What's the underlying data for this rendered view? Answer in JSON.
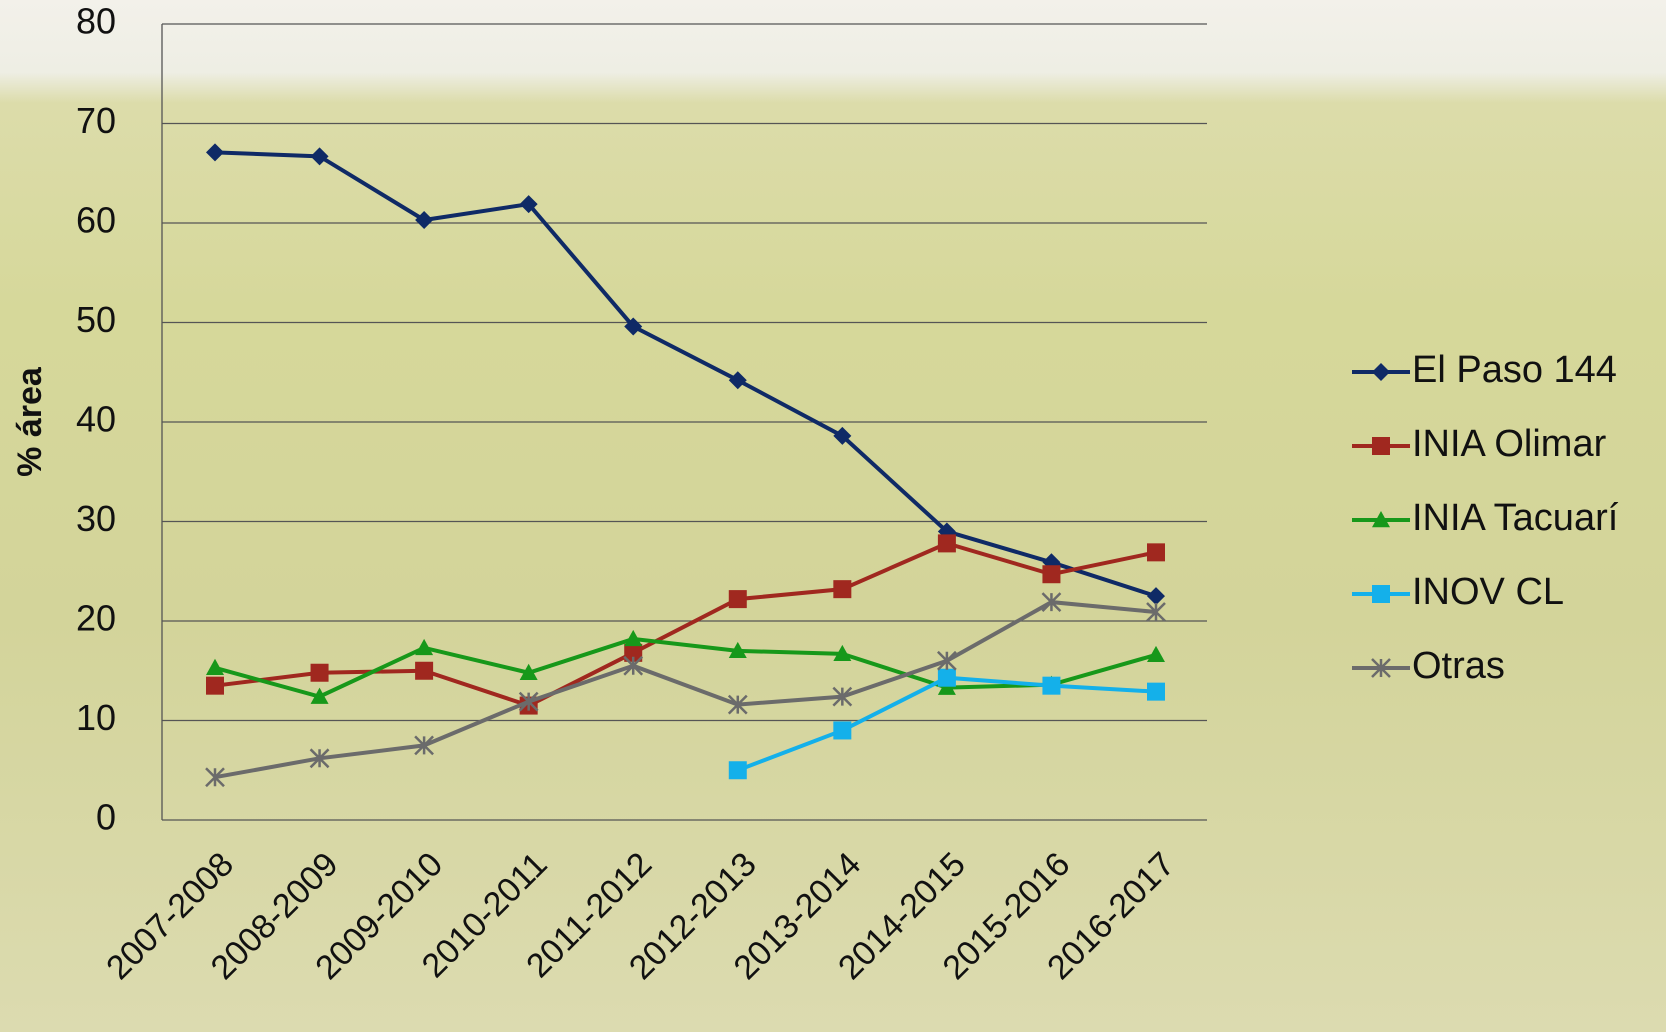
{
  "chart_data": {
    "type": "line",
    "y_label": "% área",
    "categories": [
      "2007-2008",
      "2008-2009",
      "2009-2010",
      "2010-2011",
      "2011-2012",
      "2012-2013",
      "2013-2014",
      "2014-2015",
      "2015-2016",
      "2016-2017"
    ],
    "series": [
      {
        "name": "El Paso 144",
        "color": "#0f2a66",
        "marker": "diamond",
        "values": [
          67.1,
          66.7,
          60.3,
          61.9,
          49.6,
          44.2,
          38.6,
          29.0,
          25.9,
          22.5
        ]
      },
      {
        "name": "INIA Olimar",
        "color": "#a0281f",
        "marker": "square",
        "values": [
          13.5,
          14.8,
          15.0,
          11.5,
          16.8,
          22.2,
          23.2,
          27.8,
          24.7,
          26.9
        ]
      },
      {
        "name": "INIA Tacuarí",
        "color": "#17981a",
        "marker": "triangle",
        "values": [
          15.3,
          12.4,
          17.3,
          14.8,
          18.2,
          17.0,
          16.7,
          13.3,
          13.6,
          16.6
        ]
      },
      {
        "name": "INOV CL",
        "color": "#14b0ea",
        "marker": "square",
        "values": [
          null,
          null,
          null,
          null,
          null,
          5.0,
          9.0,
          14.3,
          13.5,
          12.9
        ]
      },
      {
        "name": "Otras",
        "color": "#6b6b6b",
        "marker": "star",
        "values": [
          4.3,
          6.2,
          7.5,
          11.9,
          15.5,
          11.6,
          12.4,
          16.0,
          21.9,
          20.9
        ]
      }
    ],
    "ylim": [
      0,
      80
    ],
    "yticks": [
      0,
      10,
      20,
      30,
      40,
      50,
      60,
      70,
      80
    ],
    "grid": true,
    "legend": "right"
  }
}
